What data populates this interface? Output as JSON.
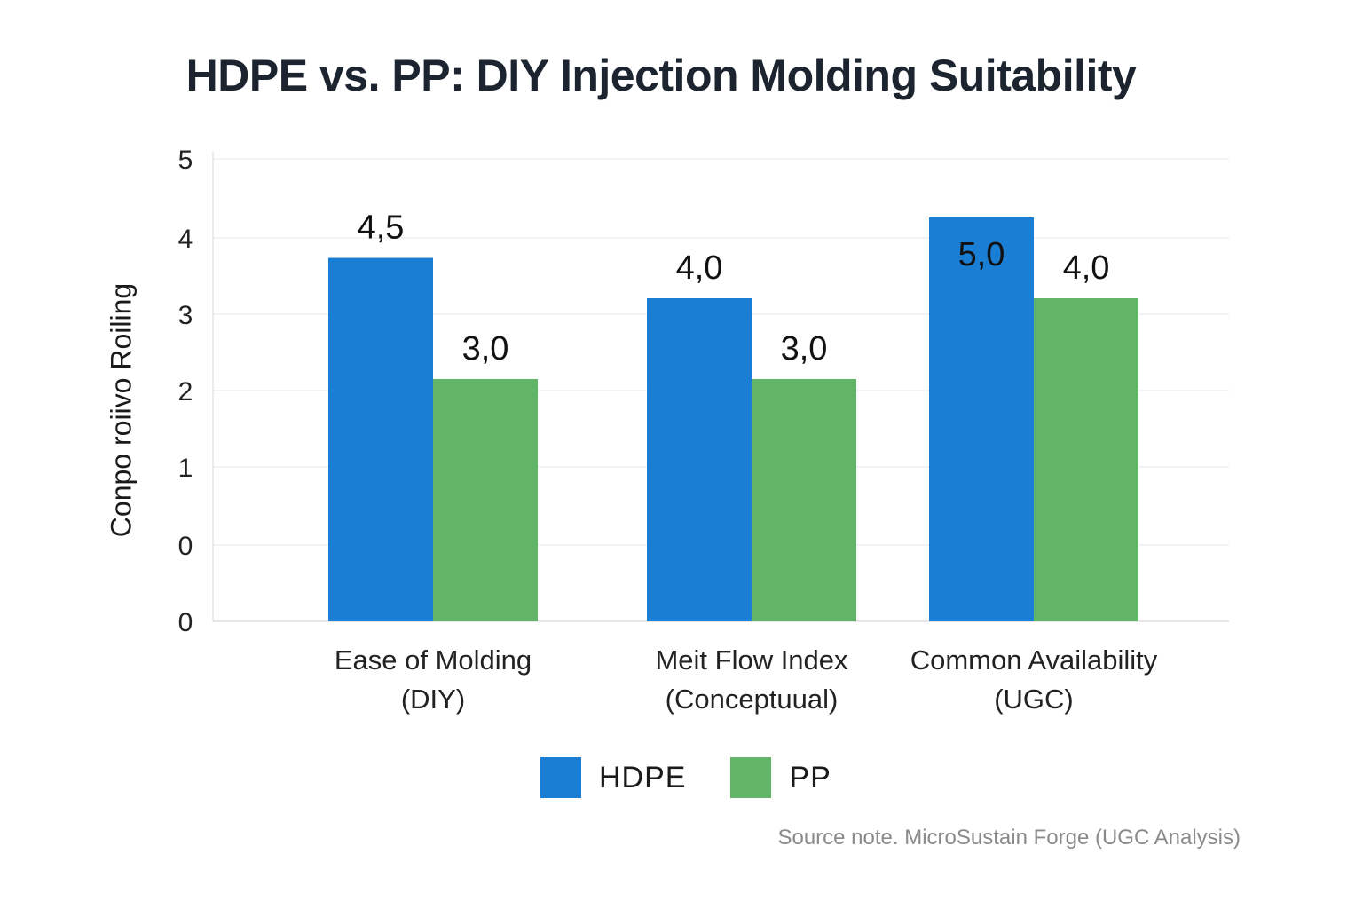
{
  "chart_data": {
    "type": "bar",
    "title": "HDPE vs. PP: DIY Injection Molding Suitability",
    "ylabel": "Conpo roiivo Roiling",
    "xlabel": "",
    "y_tick_labels": [
      "5",
      "4",
      "3",
      "2",
      "1",
      "0",
      "0"
    ],
    "ylim": [
      0,
      5
    ],
    "grid": true,
    "legend_position": "bottom",
    "categories": [
      [
        "Ease of Molding",
        "(DIY)"
      ],
      [
        "Meit Flow Index",
        "(Conceptuual)"
      ],
      [
        "Common Availability",
        "(UGC)"
      ]
    ],
    "series": [
      {
        "name": "HDPE",
        "color": "#1a7fd4",
        "values": [
          4.5,
          4.0,
          5.0
        ],
        "labels": [
          "4,5",
          "4,0",
          "5,0"
        ]
      },
      {
        "name": "PP",
        "color": "#62b466",
        "values": [
          3.0,
          3.0,
          4.0
        ],
        "labels": [
          "3,0",
          "3,0",
          "4,0"
        ]
      }
    ],
    "source_note": "Source note. MicroSustain Forge (UGC Analysis)"
  }
}
